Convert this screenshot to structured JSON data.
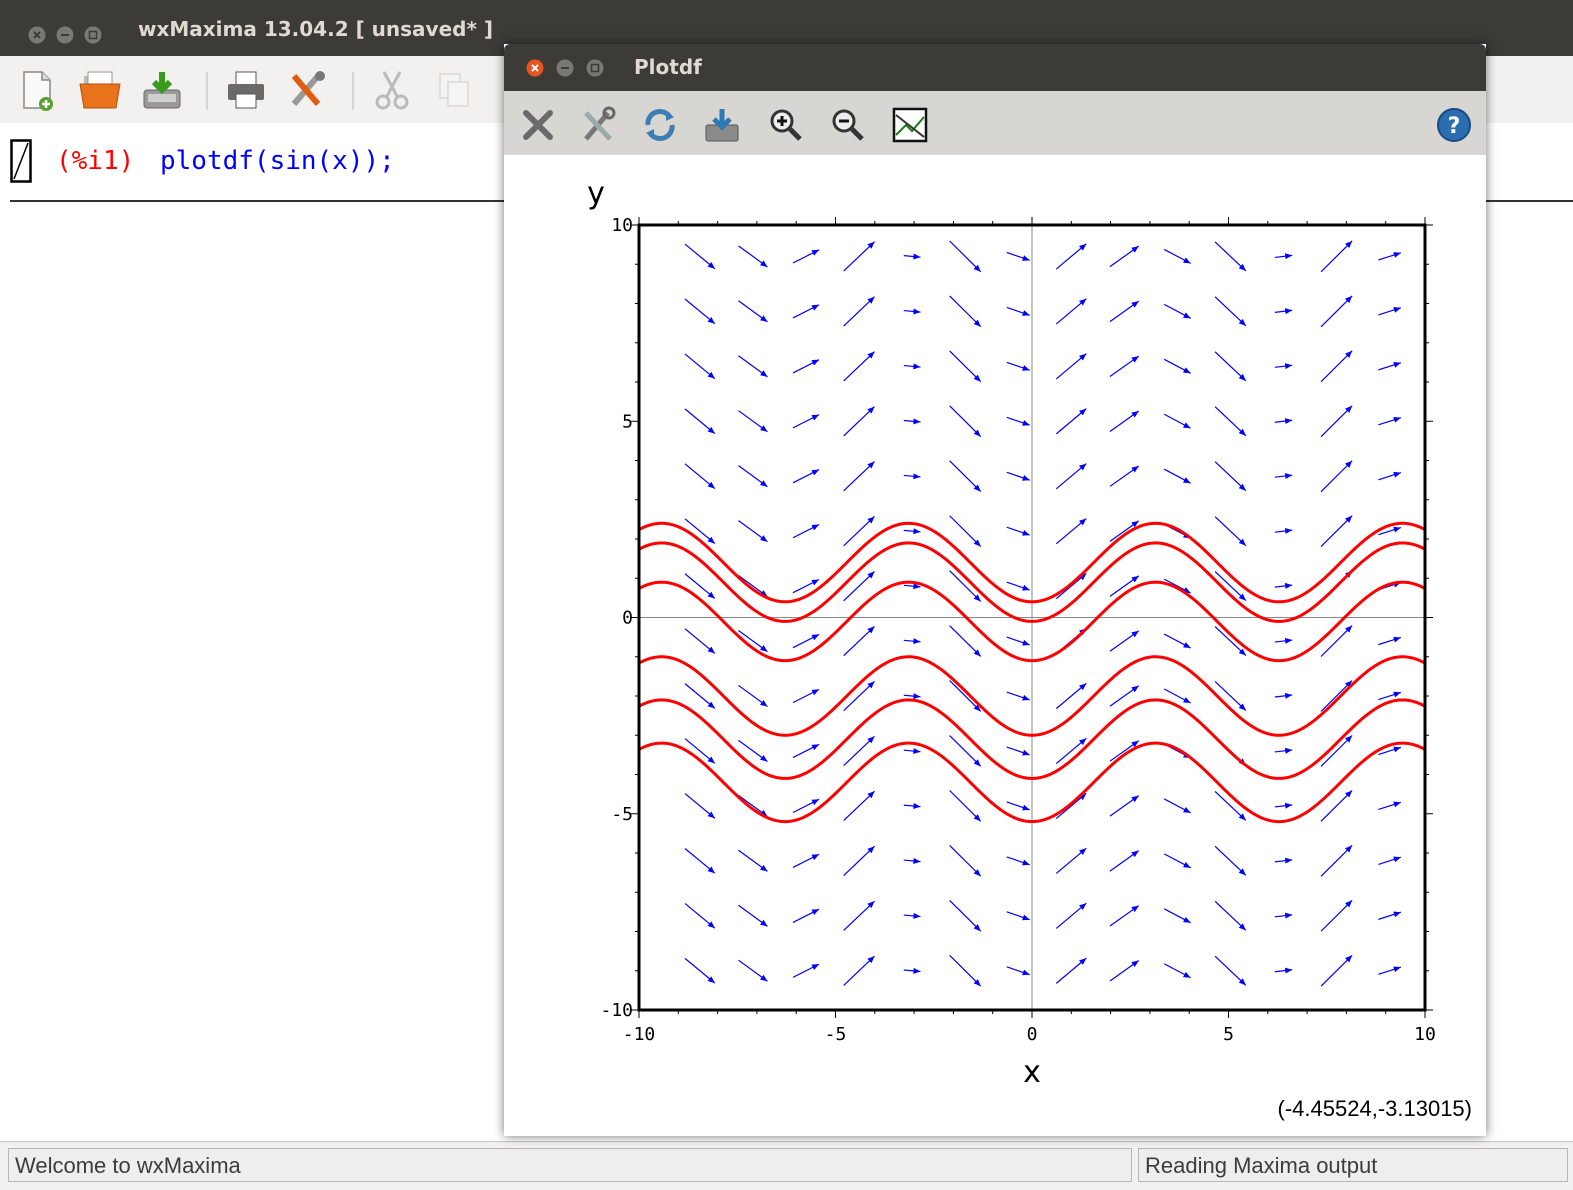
{
  "main_window": {
    "title": "wxMaxima 13.04.2 [ unsaved* ]",
    "toolbar": [
      "new-file",
      "open-file",
      "save-file",
      "print",
      "preferences",
      "cut",
      "copy"
    ]
  },
  "cell": {
    "label": "(%i1)",
    "input": "plotdf(sin(x));"
  },
  "status": {
    "left": "Welcome to wxMaxima",
    "right": "Reading Maxima output"
  },
  "plot_window": {
    "title": "Plotdf",
    "toolbar": [
      "close",
      "config",
      "replot",
      "save",
      "zoom-in",
      "zoom-out",
      "plot-versus-t",
      "help"
    ],
    "coord_readout": "(-4.45524,-3.13015)"
  },
  "colors": {
    "field_arrows": "#0000ff",
    "trajectories": "#ff0000",
    "titlebar": "#3c3b37",
    "close_button": "#e95420"
  },
  "chart_data": {
    "type": "line",
    "title": "",
    "xlabel": "x",
    "ylabel": "y",
    "xlim": [
      -10,
      10
    ],
    "ylim": [
      -10,
      10
    ],
    "xticks": [
      -10,
      -5,
      0,
      5,
      10
    ],
    "yticks": [
      -10,
      -5,
      0,
      5,
      10
    ],
    "axes_lines_at_zero": true,
    "direction_field": {
      "equation": "dy/dx = sin(x)",
      "grid_x": [
        -8.45,
        -7.1,
        -5.75,
        -4.4,
        -3.05,
        -1.7,
        -0.35,
        1.0,
        2.35,
        3.7,
        5.05,
        6.4,
        7.75,
        9.1
      ],
      "grid_y": [
        -9.0,
        -7.6,
        -6.2,
        -4.8,
        -3.4,
        -2.0,
        -0.6,
        0.8,
        2.2,
        3.6,
        5.0,
        6.4,
        7.8,
        9.2
      ],
      "color": "#0000ff"
    },
    "trajectories": {
      "function": "y = C - cos(x)",
      "constants": [
        1.4,
        0.9,
        -0.1,
        -2.0,
        -3.1,
        -4.2
      ],
      "x_range": [
        -10,
        10
      ],
      "color": "#ff0000"
    }
  }
}
